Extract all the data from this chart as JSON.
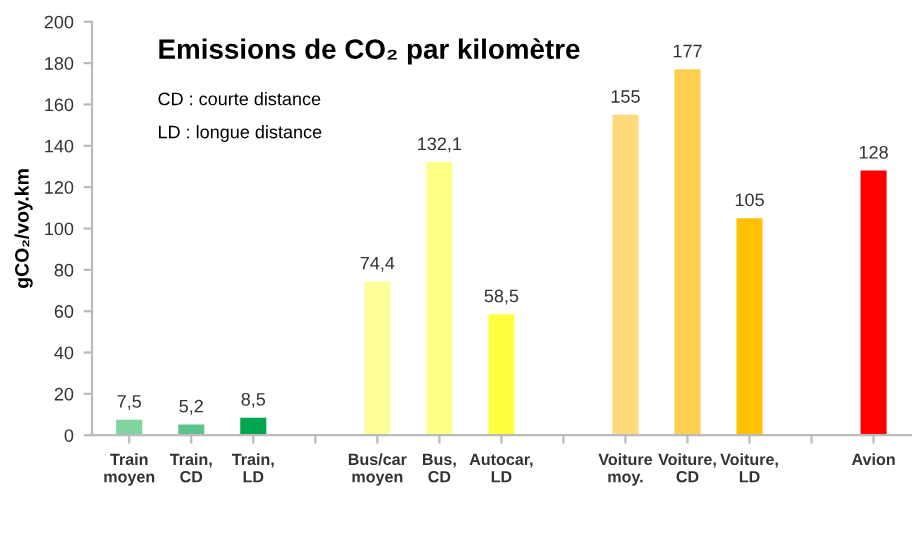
{
  "chart_data": {
    "type": "bar",
    "title": "Emissions de CO₂ par kilomètre",
    "ylabel": "gCO₂/voy.km",
    "annotations": [
      "CD : courte distance",
      "LD : longue distance"
    ],
    "categories": [
      "Train\nmoyen",
      "Train,\nCD",
      "Train,\nLD",
      null,
      "Bus/car\nmoyen",
      "Bus,\nCD",
      "Autocar,\nLD",
      null,
      "Voiture\nmoy.",
      "Voiture,\nCD",
      "Voiture,\nLD",
      null,
      "Avion"
    ],
    "values": [
      7.5,
      5.2,
      8.5,
      null,
      74.4,
      132.1,
      58.5,
      null,
      155,
      177,
      105,
      null,
      128
    ],
    "value_labels": [
      "7,5",
      "5,2",
      "8,5",
      null,
      "74,4",
      "132,1",
      "58,5",
      null,
      "155",
      "177",
      "105",
      null,
      "128"
    ],
    "colors": [
      "#7fd4a0",
      "#5cc48a",
      "#00a550",
      "#ffffff",
      "#ffff99",
      "#ffff88",
      "#ffff40",
      "#ffffff",
      "#ffd97a",
      "#ffd050",
      "#ffc000",
      "#ffffff",
      "#ff0000"
    ],
    "ylim": [
      0,
      200
    ],
    "yticks": [
      0,
      20,
      40,
      60,
      80,
      100,
      120,
      140,
      160,
      180,
      200
    ],
    "grid": false,
    "legend": false
  }
}
